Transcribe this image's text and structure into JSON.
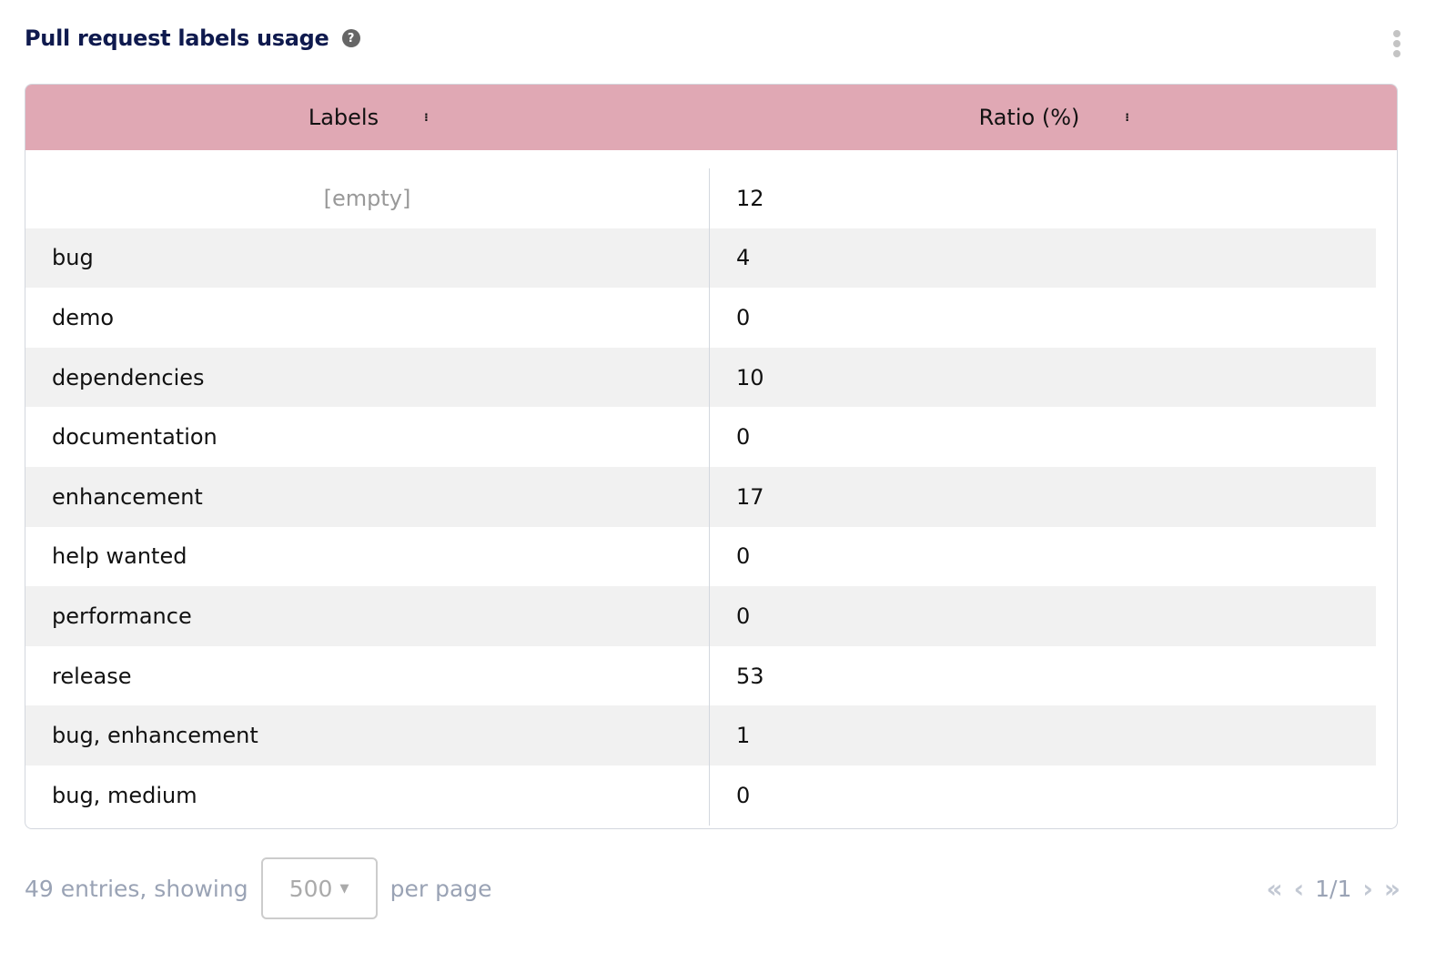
{
  "title": "Pull request labels usage",
  "icons": {
    "help": "question-circle-icon",
    "menu": "kebab-menu-icon",
    "sort": "sort-icon",
    "dropdown": "caret-down-icon"
  },
  "colors": {
    "header_bg": "#e0a8b4",
    "title": "#0f1a4e"
  },
  "table": {
    "columns": [
      "Labels",
      "Ratio (%)"
    ],
    "rows": [
      {
        "label": "[empty]",
        "ratio": "12"
      },
      {
        "label": "bug",
        "ratio": "4"
      },
      {
        "label": "demo",
        "ratio": "0"
      },
      {
        "label": "dependencies",
        "ratio": "10"
      },
      {
        "label": "documentation",
        "ratio": "0"
      },
      {
        "label": "enhancement",
        "ratio": "17"
      },
      {
        "label": "help wanted",
        "ratio": "0"
      },
      {
        "label": "performance",
        "ratio": "0"
      },
      {
        "label": "release",
        "ratio": "53"
      },
      {
        "label": "bug, enhancement",
        "ratio": "1"
      },
      {
        "label": "bug, medium",
        "ratio": "0"
      }
    ]
  },
  "footer": {
    "entries_text": "49 entries, showing",
    "per_page_value": "500",
    "per_page_text": "per page",
    "page_indicator": "1/1",
    "first": "«",
    "prev": "‹",
    "next": "›",
    "last": "»"
  }
}
